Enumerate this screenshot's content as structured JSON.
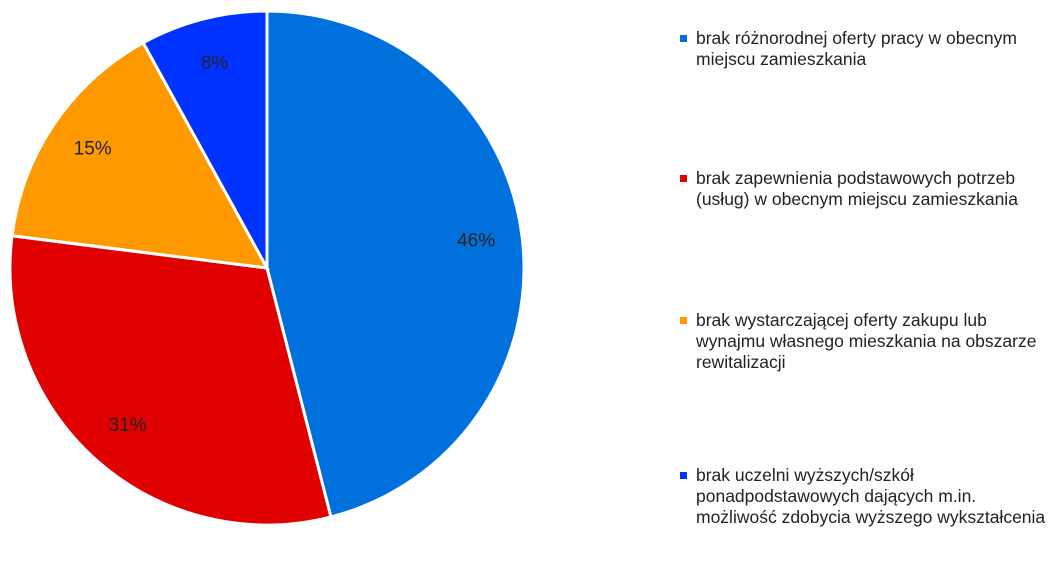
{
  "chart_data": {
    "type": "pie",
    "categories": [
      "brak różnorodnej oferty pracy w obecnym miejscu zamieszkania",
      "brak zapewnienia podstawowych potrzeb (usług) w obecnym miejscu zamieszkania",
      "brak wystarczającej oferty zakupu lub wynajmu własnego mieszkania na obszarze rewitalizacji",
      "brak uczelni wyższych/szkół ponadpodstawowych dających m.in. możliwość zdobycia wyższego wykształcenia"
    ],
    "values": [
      46,
      31,
      15,
      8
    ],
    "value_labels": [
      "46%",
      "31%",
      "15%",
      "8%"
    ],
    "colors": [
      "#0070dd",
      "#e00000",
      "#ff9900",
      "#0033ff"
    ],
    "legend": "right"
  }
}
